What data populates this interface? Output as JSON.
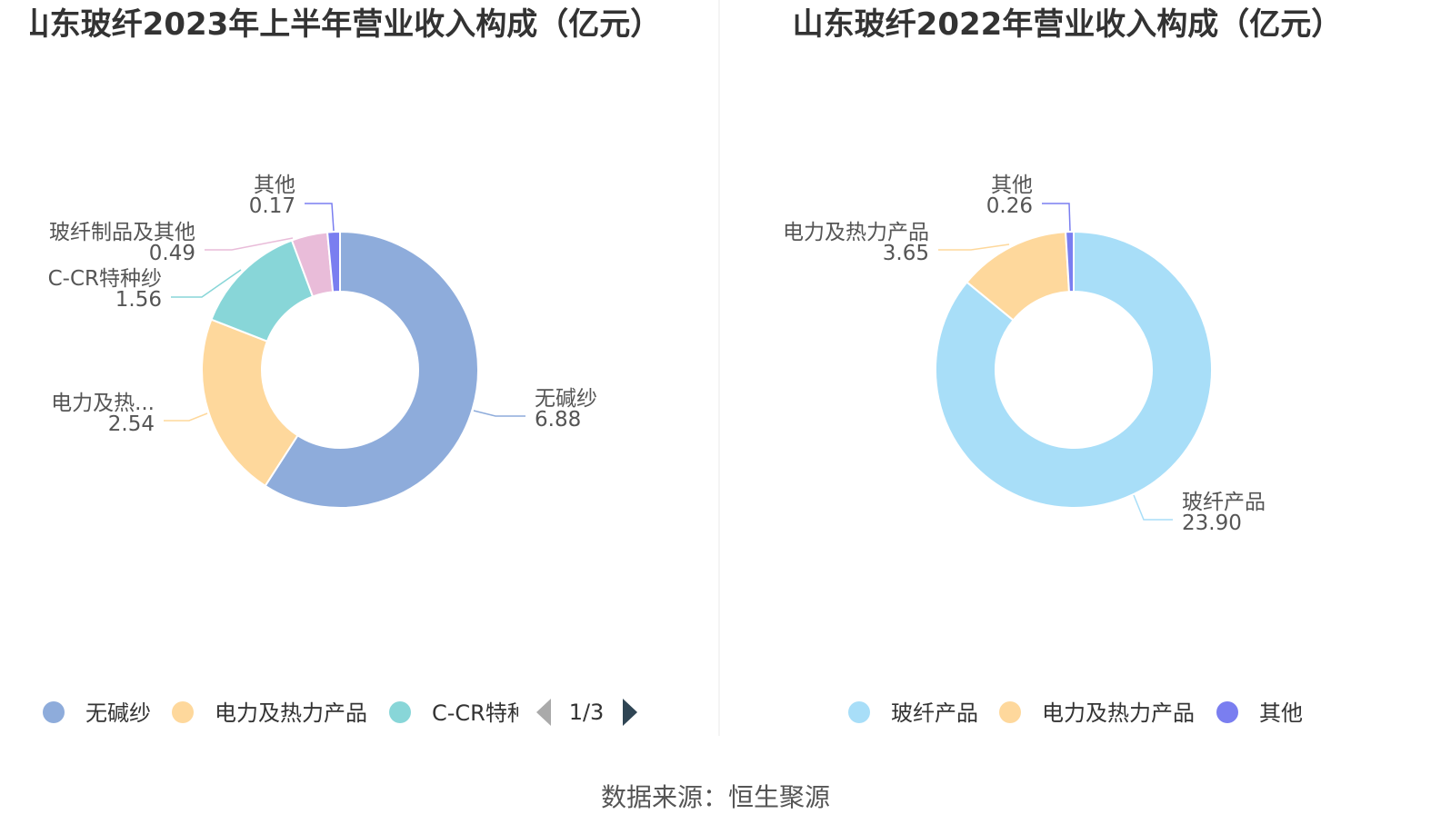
{
  "chart_data": [
    {
      "type": "pie",
      "title": "山东玻纤2023年上半年营业收入构成（亿元）",
      "series": [
        {
          "name": "无碱纱",
          "value": 6.88,
          "label": "无碱纱",
          "value_text": "6.88",
          "color": "#8eacdb"
        },
        {
          "name": "电力及热力产品",
          "value": 2.54,
          "label": "电力及热...",
          "value_text": "2.54",
          "color": "#fed89c"
        },
        {
          "name": "C-CR特种纱",
          "value": 1.56,
          "label": "C-CR特种纱",
          "value_text": "1.56",
          "color": "#88d6d8"
        },
        {
          "name": "玻纤制品及其他",
          "value": 0.49,
          "label": "玻纤制品及其他",
          "value_text": "0.49",
          "color": "#e9bcd9"
        },
        {
          "name": "其他",
          "value": 0.17,
          "label": "其他",
          "value_text": "0.17",
          "color": "#7a7ef0"
        }
      ],
      "legend": {
        "items": [
          "无碱纱",
          "电力及热力产品",
          "C-CR特种"
        ],
        "colors": [
          "#8eacdb",
          "#fed89c",
          "#88d6d8"
        ],
        "page_indicator": "1/3",
        "placement": "bottom"
      }
    },
    {
      "type": "pie",
      "title": "山东玻纤2022年营业收入构成（亿元）",
      "series": [
        {
          "name": "玻纤产品",
          "value": 23.9,
          "label": "玻纤产品",
          "value_text": "23.90",
          "color": "#a8def8"
        },
        {
          "name": "电力及热力产品",
          "value": 3.65,
          "label": "电力及热力产品",
          "value_text": "3.65",
          "color": "#fed89c"
        },
        {
          "name": "其他",
          "value": 0.26,
          "label": "其他",
          "value_text": "0.26",
          "color": "#7a7ef0"
        }
      ],
      "legend": {
        "items": [
          "玻纤产品",
          "电力及热力产品",
          "其他"
        ],
        "colors": [
          "#a8def8",
          "#fed89c",
          "#7a7ef0"
        ],
        "placement": "bottom"
      }
    }
  ],
  "source": "数据来源：恒生聚源"
}
